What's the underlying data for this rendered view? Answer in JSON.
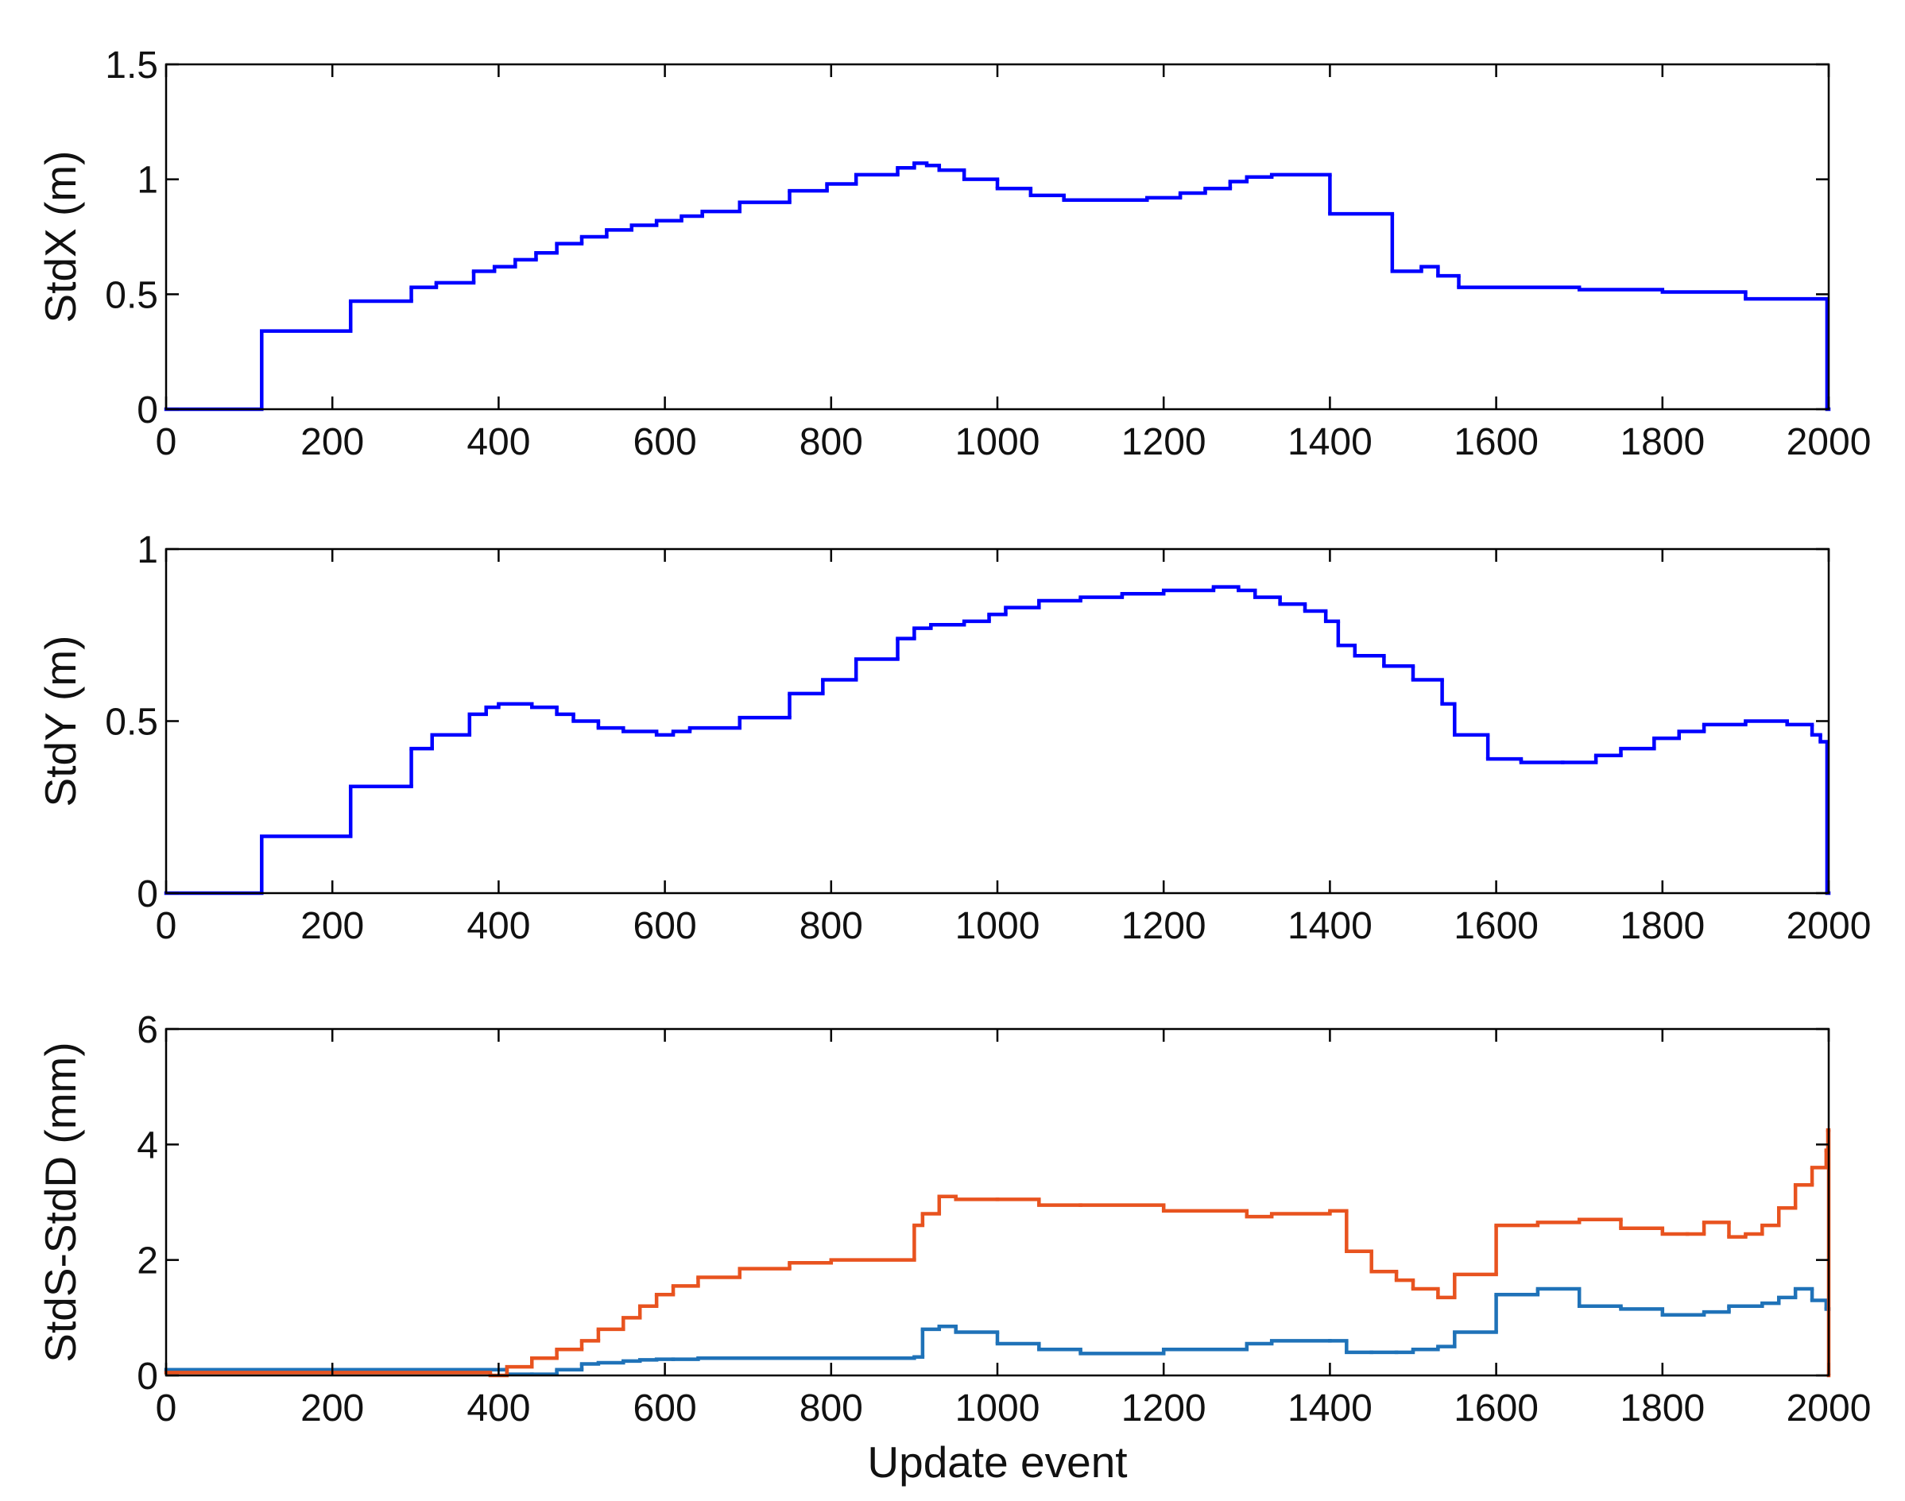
{
  "chart_data": [
    {
      "type": "line",
      "drawstyle": "steps-post",
      "ylabel": "StdX (m)",
      "x": [
        0,
        115,
        222,
        295,
        325,
        370,
        395,
        420,
        445,
        470,
        500,
        530,
        560,
        590,
        620,
        645,
        690,
        750,
        795,
        830,
        880,
        900,
        915,
        930,
        960,
        1000,
        1040,
        1080,
        1180,
        1220,
        1250,
        1280,
        1300,
        1330,
        1400,
        1475,
        1510,
        1530,
        1555,
        1700,
        1800,
        1900,
        1998
      ],
      "series": [
        {
          "color": "#0000ff",
          "values": [
            0,
            0.34,
            0.47,
            0.53,
            0.55,
            0.6,
            0.62,
            0.65,
            0.68,
            0.72,
            0.75,
            0.78,
            0.8,
            0.82,
            0.84,
            0.86,
            0.9,
            0.95,
            0.98,
            1.02,
            1.05,
            1.07,
            1.06,
            1.04,
            1.0,
            0.96,
            0.93,
            0.91,
            0.92,
            0.94,
            0.96,
            0.99,
            1.01,
            1.02,
            0.85,
            0.6,
            0.62,
            0.58,
            0.53,
            0.52,
            0.51,
            0.48,
            0
          ]
        }
      ],
      "xlim": [
        0,
        2000
      ],
      "xticks": [
        0,
        200,
        400,
        600,
        800,
        1000,
        1200,
        1400,
        1600,
        1800,
        2000
      ],
      "ylim": [
        0,
        1.5
      ],
      "yticks": [
        0,
        0.5,
        1,
        1.5
      ]
    },
    {
      "type": "line",
      "drawstyle": "steps-post",
      "ylabel": "StdY (m)",
      "x": [
        0,
        115,
        222,
        295,
        320,
        365,
        385,
        400,
        440,
        470,
        490,
        520,
        550,
        590,
        610,
        630,
        690,
        750,
        790,
        830,
        880,
        900,
        920,
        960,
        990,
        1010,
        1050,
        1100,
        1150,
        1200,
        1260,
        1290,
        1310,
        1340,
        1370,
        1395,
        1410,
        1430,
        1465,
        1500,
        1535,
        1550,
        1590,
        1630,
        1680,
        1720,
        1750,
        1790,
        1820,
        1850,
        1900,
        1950,
        1980,
        1990,
        1998
      ],
      "series": [
        {
          "color": "#0000ff",
          "values": [
            0,
            0.165,
            0.31,
            0.42,
            0.46,
            0.52,
            0.54,
            0.55,
            0.54,
            0.52,
            0.5,
            0.48,
            0.47,
            0.46,
            0.47,
            0.48,
            0.51,
            0.58,
            0.62,
            0.68,
            0.74,
            0.77,
            0.78,
            0.79,
            0.81,
            0.83,
            0.85,
            0.86,
            0.87,
            0.88,
            0.89,
            0.88,
            0.86,
            0.84,
            0.82,
            0.79,
            0.72,
            0.69,
            0.66,
            0.62,
            0.55,
            0.46,
            0.39,
            0.38,
            0.38,
            0.4,
            0.42,
            0.45,
            0.47,
            0.49,
            0.5,
            0.49,
            0.46,
            0.44,
            0
          ]
        }
      ],
      "xlim": [
        0,
        2000
      ],
      "xticks": [
        0,
        200,
        400,
        600,
        800,
        1000,
        1200,
        1400,
        1600,
        1800,
        2000
      ],
      "ylim": [
        0,
        1
      ],
      "yticks": [
        0,
        0.5,
        1
      ]
    },
    {
      "type": "line",
      "drawstyle": "steps-post",
      "ylabel": "StdS-StdD (mm)",
      "xlabel": "Update event",
      "x": [
        0,
        390,
        410,
        440,
        470,
        500,
        520,
        550,
        570,
        590,
        610,
        640,
        690,
        750,
        800,
        900,
        910,
        930,
        950,
        1000,
        1050,
        1100,
        1200,
        1300,
        1330,
        1400,
        1420,
        1450,
        1480,
        1500,
        1530,
        1550,
        1600,
        1650,
        1700,
        1750,
        1800,
        1830,
        1850,
        1880,
        1900,
        1920,
        1940,
        1960,
        1980,
        1997,
        1999,
        2000
      ],
      "series": [
        {
          "color": "#1f72b8",
          "values": [
            0.1,
            0.1,
            0.02,
            0.02,
            0.1,
            0.2,
            0.22,
            0.25,
            0.27,
            0.28,
            0.28,
            0.3,
            0.3,
            0.3,
            0.3,
            0.32,
            0.8,
            0.85,
            0.75,
            0.55,
            0.45,
            0.38,
            0.45,
            0.55,
            0.6,
            0.6,
            0.4,
            0.4,
            0.4,
            0.45,
            0.5,
            0.75,
            1.4,
            1.5,
            1.2,
            1.15,
            1.05,
            1.05,
            1.1,
            1.2,
            1.2,
            1.25,
            1.35,
            1.5,
            1.3,
            1.15,
            1.15,
            1.15
          ]
        },
        {
          "color": "#e8531f",
          "values": [
            0.05,
            0,
            0.15,
            0.3,
            0.45,
            0.6,
            0.8,
            1.0,
            1.2,
            1.4,
            1.55,
            1.7,
            1.85,
            1.95,
            2.0,
            2.6,
            2.8,
            3.1,
            3.05,
            3.05,
            2.95,
            2.95,
            2.85,
            2.75,
            2.8,
            2.85,
            2.15,
            1.8,
            1.65,
            1.5,
            1.35,
            1.75,
            2.6,
            2.65,
            2.7,
            2.55,
            2.45,
            2.45,
            2.65,
            2.4,
            2.45,
            2.6,
            2.9,
            3.3,
            3.6,
            3.9,
            4.25,
            0
          ]
        }
      ],
      "xlim": [
        0,
        2000
      ],
      "xticks": [
        0,
        200,
        400,
        600,
        800,
        1000,
        1200,
        1400,
        1600,
        1800,
        2000
      ],
      "ylim": [
        0,
        6
      ],
      "yticks": [
        0,
        2,
        4,
        6
      ]
    }
  ]
}
